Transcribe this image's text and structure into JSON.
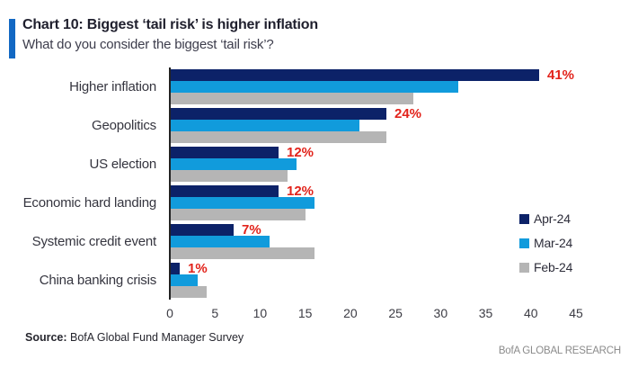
{
  "header": {
    "title": "Chart 10: Biggest ‘tail risk’ is higher inflation",
    "subtitle": "What do you consider the biggest ‘tail risk’?"
  },
  "chart_data": {
    "type": "bar",
    "orientation": "horizontal",
    "title": "Chart 10: Biggest ‘tail risk’ is higher inflation",
    "subtitle": "What do you consider the biggest ‘tail risk’?",
    "categories": [
      "Higher inflation",
      "Geopolitics",
      "US election",
      "Economic hard landing",
      "Systemic credit event",
      "China banking crisis"
    ],
    "series": [
      {
        "name": "Apr-24",
        "color": "#0c2268",
        "values": [
          41,
          24,
          12,
          12,
          7,
          1
        ]
      },
      {
        "name": "Mar-24",
        "color": "#119bdc",
        "values": [
          32,
          21,
          14,
          16,
          11,
          3
        ]
      },
      {
        "name": "Feb-24",
        "color": "#b5b5b5",
        "values": [
          27,
          24,
          13,
          15,
          16,
          4
        ]
      }
    ],
    "annotations": [
      "41%",
      "24%",
      "12%",
      "12%",
      "7%",
      "1%"
    ],
    "annotation_color": "#e2231b",
    "xlabel": "",
    "ylabel": "",
    "xlim": [
      0,
      45
    ],
    "xticks": [
      0,
      5,
      10,
      15,
      20,
      25,
      30,
      35,
      40,
      45
    ],
    "grid": false,
    "legend_position": "right"
  },
  "footer": {
    "source_label": "Source:",
    "source_text": " BofA Global Fund Manager Survey",
    "brand": "BofA GLOBAL RESEARCH"
  },
  "colors": {
    "accent_bar": "#1268c3",
    "apr_navy": "#0c2268",
    "mar_blue": "#119bdc",
    "feb_gray": "#b5b5b5",
    "annotation_red": "#e2231b",
    "axis_line": "#222222"
  }
}
